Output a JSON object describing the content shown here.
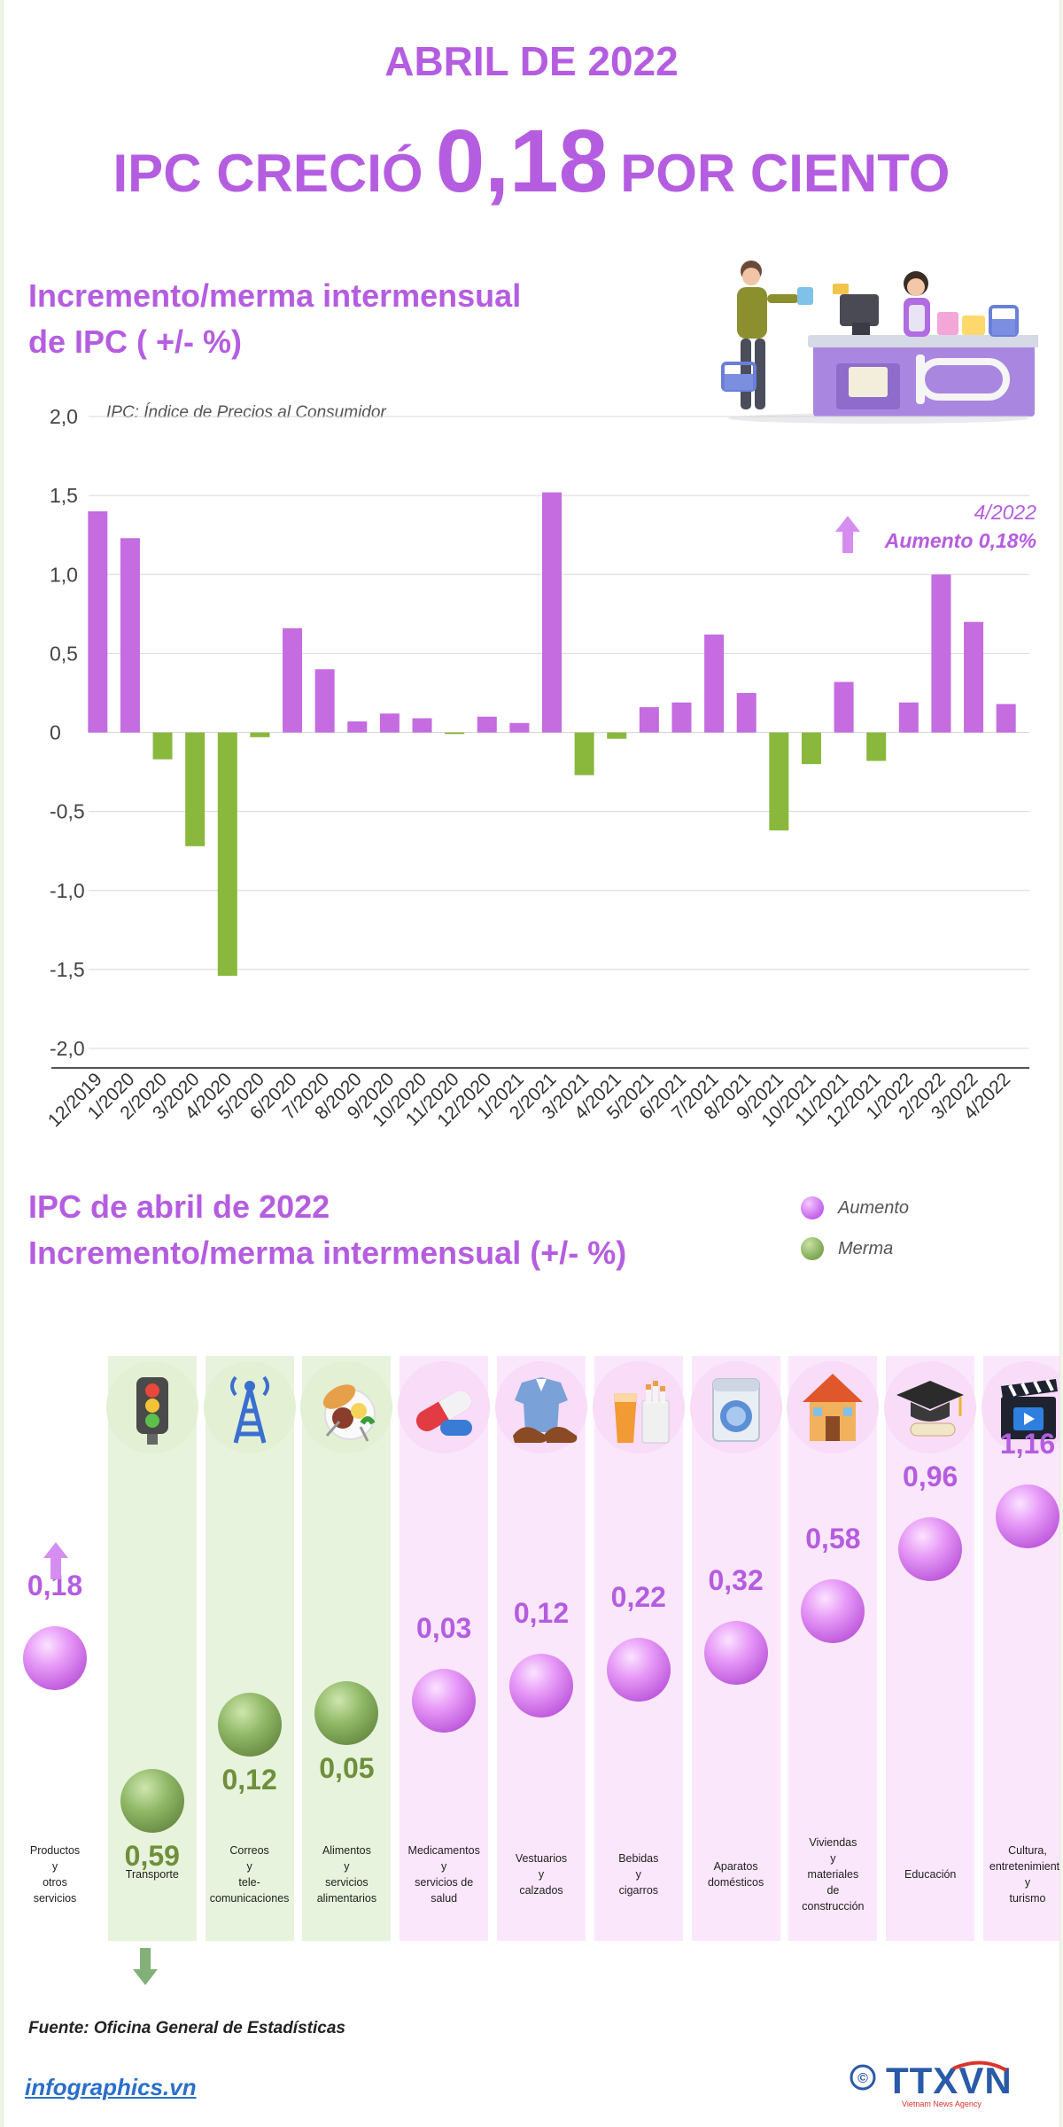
{
  "header": {
    "date": "ABRIL DE 2022",
    "headline_pre": "IPC CRECIÓ",
    "headline_value": "0,18",
    "headline_post": "POR CIENTO"
  },
  "section1": {
    "title_line1": "Incremento/merma intermensual",
    "title_line2": "de IPC ( +/- %)",
    "note": "IPC: Índice de Precios al Consumidor",
    "callout_date": "4/2022",
    "callout_text": "Aumento 0,18%"
  },
  "chart_data": {
    "type": "bar",
    "categories": [
      "12/2019",
      "1/2020",
      "2/2020",
      "3/2020",
      "4/2020",
      "5/2020",
      "6/2020",
      "7/2020",
      "8/2020",
      "9/2020",
      "10/2020",
      "11/2020",
      "12/2020",
      "1/2021",
      "2/2021",
      "3/2021",
      "4/2021",
      "5/2021",
      "6/2021",
      "7/2021",
      "8/2021",
      "9/2021",
      "10/2021",
      "11/2021",
      "12/2021",
      "1/2022",
      "2/2022",
      "3/2022",
      "4/2022"
    ],
    "values": [
      1.4,
      1.23,
      -0.17,
      -0.72,
      -1.54,
      -0.03,
      0.66,
      0.4,
      0.07,
      0.12,
      0.09,
      -0.01,
      0.1,
      0.06,
      1.52,
      -0.27,
      -0.04,
      0.16,
      0.19,
      0.62,
      0.25,
      -0.62,
      -0.2,
      0.32,
      -0.18,
      0.19,
      1.0,
      0.7,
      0.18
    ],
    "ylim": [
      -2.0,
      2.0
    ],
    "yticks": [
      "2,0",
      "1,5",
      "1,0",
      "0,5",
      "0",
      "-0,5",
      "-1,0",
      "-1,5",
      "-2,0"
    ],
    "grid": true,
    "colors": {
      "increase": "#c46ce0",
      "decrease": "#8ab83d"
    }
  },
  "section2": {
    "title_line1": "IPC de abril de 2022",
    "title_line2": "Incremento/merma intermensual (+/- %)",
    "legend": [
      {
        "label": "Aumento",
        "kind": "up"
      },
      {
        "label": "Merma",
        "kind": "down"
      }
    ],
    "categories": [
      {
        "label": "Productos\ny\notros\nservicios",
        "value": "0,18",
        "kind": "up",
        "num": 0.18,
        "icon": "none"
      },
      {
        "label": "Transporte",
        "value": "0,59",
        "kind": "down",
        "num": -0.59,
        "icon": "traffic-light-icon"
      },
      {
        "label": "Correos\ny\ntele-\ncomunicaciones",
        "value": "0,12",
        "kind": "down",
        "num": -0.12,
        "icon": "antenna-icon"
      },
      {
        "label": "Alimentos\ny\nservicios\nalimentarios",
        "value": "0,05",
        "kind": "down",
        "num": -0.05,
        "icon": "food-plate-icon"
      },
      {
        "label": "Medicamentos\ny\nservicios de\nsalud",
        "value": "0,03",
        "kind": "up",
        "num": 0.03,
        "icon": "pill-icon"
      },
      {
        "label": "Vestuarios\ny\ncalzados",
        "value": "0,12",
        "kind": "up",
        "num": 0.12,
        "icon": "shirt-shoes-icon"
      },
      {
        "label": "Bebidas\ny\ncigarros",
        "value": "0,22",
        "kind": "up",
        "num": 0.22,
        "icon": "drink-cigarette-icon"
      },
      {
        "label": "Aparatos\ndomésticos",
        "value": "0,32",
        "kind": "up",
        "num": 0.32,
        "icon": "washing-machine-icon"
      },
      {
        "label": "Viviendas\ny\nmateriales\nde\nconstrucción",
        "value": "0,58",
        "kind": "up",
        "num": 0.58,
        "icon": "house-icon"
      },
      {
        "label": "Educación",
        "value": "0,96",
        "kind": "up",
        "num": 0.96,
        "icon": "graduation-cap-icon"
      },
      {
        "label": "Cultura,\nentretenimiento\ny\nturismo",
        "value": "1,16",
        "kind": "up",
        "num": 1.16,
        "icon": "clapperboard-icon"
      }
    ]
  },
  "footer": {
    "source": "Fuente: Oficina General de Estadísticas",
    "site": "infographics.vn",
    "logo_text": "TTXVN",
    "logo_sub": "Vietnam News Agency",
    "copyright": "©"
  }
}
